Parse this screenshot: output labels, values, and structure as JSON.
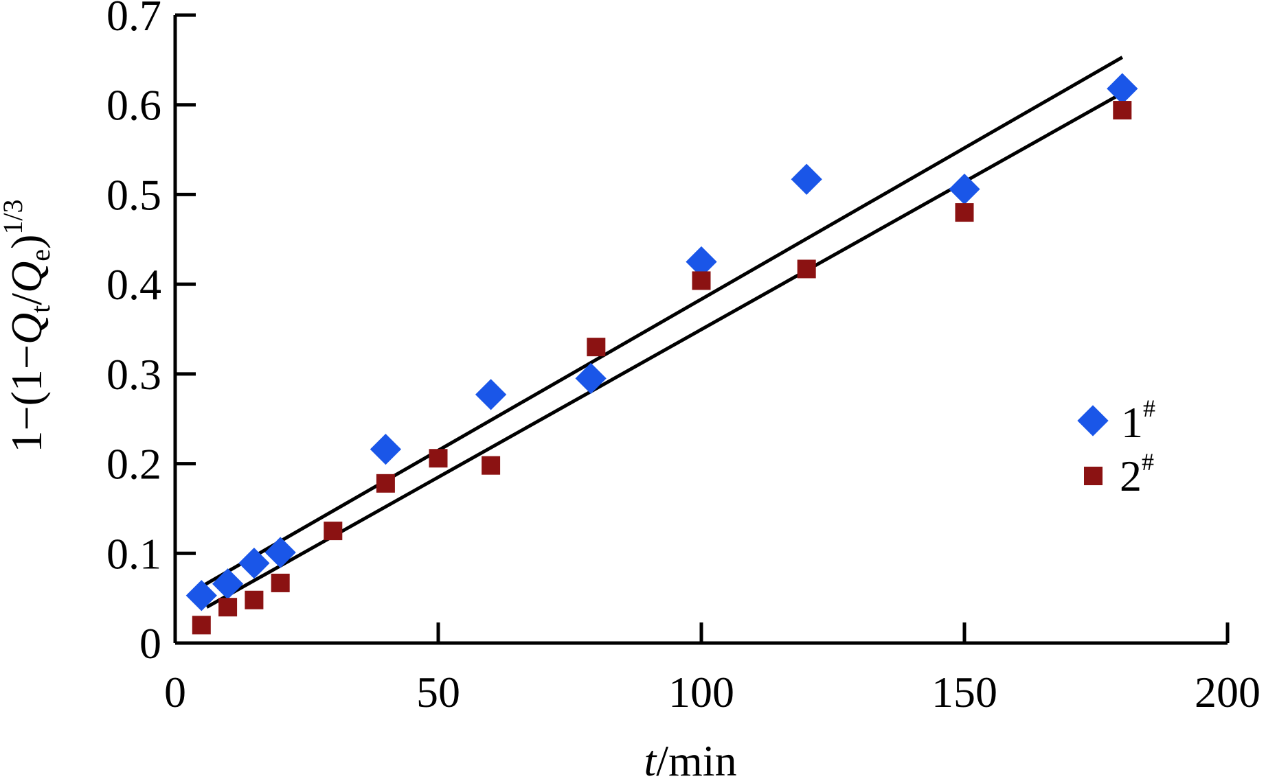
{
  "chart_data": {
    "type": "scatter",
    "x_label": {
      "italic": "t",
      "rest": "/min"
    },
    "y_label": {
      "prefix": "1−(1−",
      "q": "Q",
      "t_sub": "t",
      "slash": "/",
      "e_sub": "e",
      "close": ")",
      "exp": "1/3"
    },
    "xlim": [
      0,
      200
    ],
    "ylim": [
      0,
      0.7
    ],
    "x_ticks": [
      0,
      50,
      100,
      150,
      200
    ],
    "y_ticks": [
      0,
      0.1,
      0.2,
      0.3,
      0.4,
      0.5,
      0.6,
      0.7
    ],
    "x_tick_labels": [
      "0",
      "50",
      "100",
      "150",
      "200"
    ],
    "y_tick_labels": [
      "0",
      "0.1",
      "0.2",
      "0.3",
      "0.4",
      "0.5",
      "0.6",
      "0.7"
    ],
    "grid": false,
    "legend_position": "right",
    "series": [
      {
        "name": "1",
        "name_sup": "#",
        "marker": "diamond",
        "color": "#1a56e8",
        "x": [
          5,
          10,
          15,
          20,
          40,
          60,
          79,
          100,
          120,
          150,
          180
        ],
        "y": [
          0.053,
          0.066,
          0.089,
          0.101,
          0.216,
          0.277,
          0.295,
          0.425,
          0.517,
          0.506,
          0.618
        ],
        "fit": {
          "x": [
            5,
            180
          ],
          "y": [
            0.063,
            0.653
          ]
        }
      },
      {
        "name": "2",
        "name_sup": "#",
        "marker": "square",
        "color": "#8b1212",
        "x": [
          5,
          10,
          15,
          20,
          30,
          40,
          50,
          60,
          80,
          100,
          120,
          150,
          180
        ],
        "y": [
          0.02,
          0.04,
          0.048,
          0.067,
          0.125,
          0.178,
          0.206,
          0.198,
          0.33,
          0.404,
          0.417,
          0.48,
          0.594
        ],
        "fit": {
          "x": [
            6,
            180
          ],
          "y": [
            0.04,
            0.613
          ]
        }
      }
    ]
  }
}
